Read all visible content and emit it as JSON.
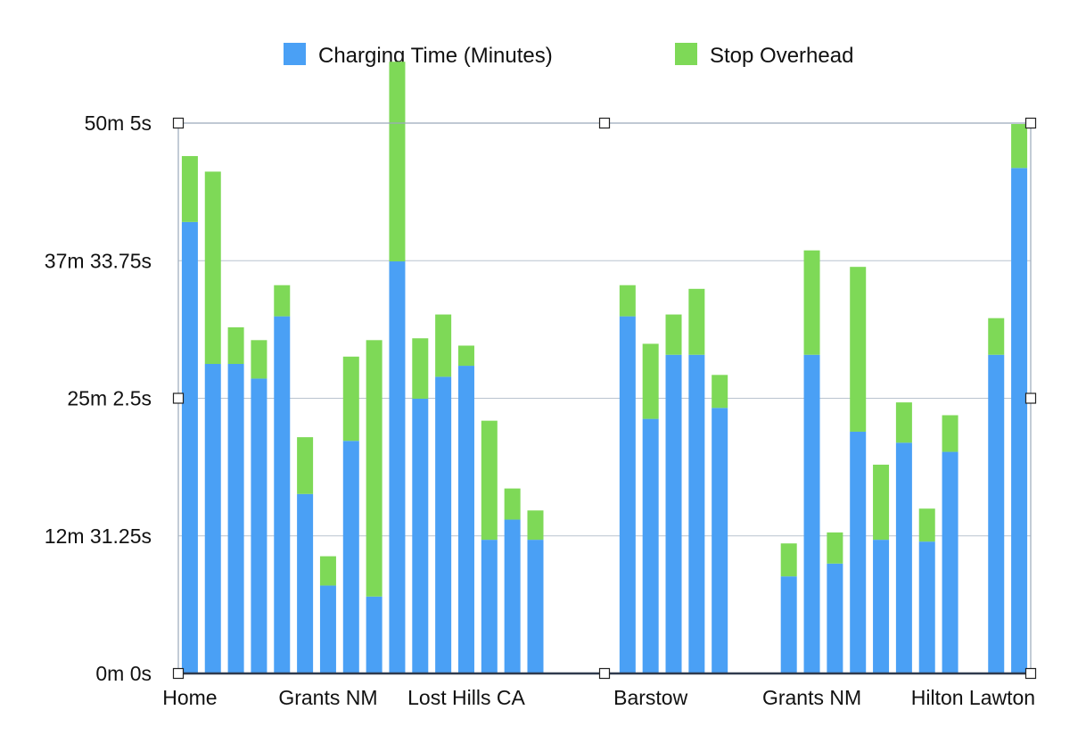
{
  "chart_data": {
    "type": "bar",
    "stacked": true,
    "title": "",
    "xlabel": "",
    "ylabel": "",
    "ylim_seconds": [
      0,
      3005
    ],
    "y_ticks": [
      {
        "value": 0,
        "label": "0m 0s"
      },
      {
        "value": 751.25,
        "label": "12m 31.25s"
      },
      {
        "value": 1502.5,
        "label": "25m 2.5s"
      },
      {
        "value": 2253.75,
        "label": "37m 33.75s"
      },
      {
        "value": 3005,
        "label": "50m 5s"
      }
    ],
    "x_tick_labels": [
      {
        "index": 0,
        "label": "Home"
      },
      {
        "index": 6,
        "label": "Grants NM"
      },
      {
        "index": 12,
        "label": "Lost Hills CA"
      },
      {
        "index": 20,
        "label": "Barstow"
      },
      {
        "index": 27,
        "label": "Grants NM"
      },
      {
        "index": 34,
        "label": "Hilton Lawton"
      }
    ],
    "legend_position": "top",
    "grid": true,
    "series": [
      {
        "name": "Charging Time (Minutes)",
        "color": "#4aa0f5",
        "values": [
          2465,
          1690,
          1690,
          1610,
          1950,
          980,
          480,
          1270,
          420,
          2250,
          1500,
          1620,
          1680,
          730,
          840,
          730,
          null,
          null,
          null,
          1950,
          1390,
          1740,
          1740,
          1450,
          null,
          null,
          530,
          1740,
          600,
          1320,
          730,
          1260,
          720,
          1210,
          null,
          1740,
          2760
        ]
      },
      {
        "name": "Stop Overhead",
        "color": "#7ed957",
        "values": [
          360,
          1050,
          200,
          210,
          170,
          310,
          160,
          460,
          1400,
          1090,
          330,
          340,
          110,
          650,
          170,
          160,
          null,
          null,
          null,
          170,
          410,
          220,
          360,
          180,
          null,
          null,
          180,
          570,
          170,
          900,
          410,
          220,
          180,
          200,
          null,
          200,
          240
        ]
      }
    ]
  }
}
